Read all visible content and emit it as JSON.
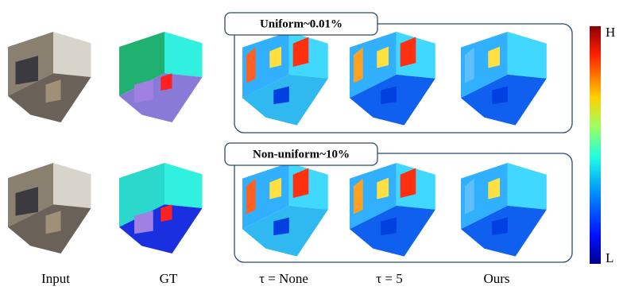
{
  "panels": [
    {
      "title": "Uniform~0.01%"
    },
    {
      "title": "Non-uniform~10%"
    }
  ],
  "columns": [
    "Input",
    "GT",
    "τ = None",
    "τ = 5",
    "Ours"
  ],
  "colorbar": {
    "high": "H",
    "low": "L"
  }
}
